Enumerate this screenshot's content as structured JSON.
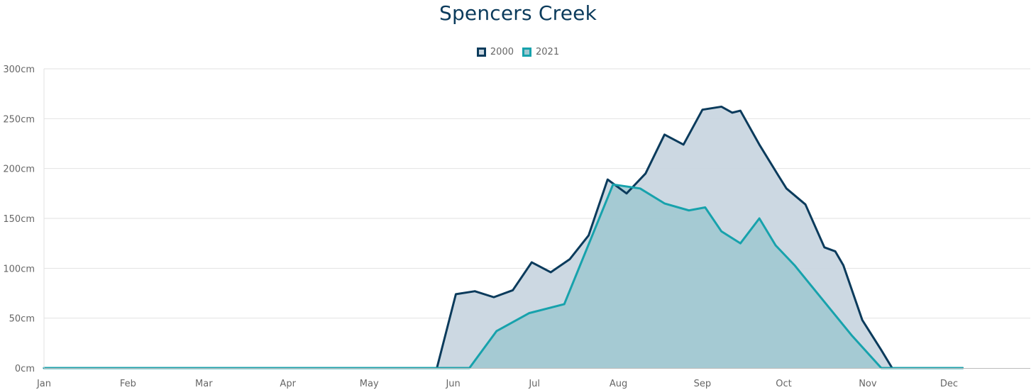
{
  "chart_data": {
    "type": "area",
    "title": "Spencers Creek",
    "xlabel": "",
    "ylabel": "",
    "ylim": [
      0,
      300
    ],
    "y_ticks": [
      0,
      50,
      100,
      150,
      200,
      250,
      300
    ],
    "y_tick_labels": [
      "0cm",
      "50cm",
      "100cm",
      "150cm",
      "200cm",
      "250cm",
      "300cm"
    ],
    "x_range_days": [
      1,
      365
    ],
    "x_ticks": [
      {
        "day": 1,
        "label": "Jan"
      },
      {
        "day": 32,
        "label": "Feb"
      },
      {
        "day": 60,
        "label": "Mar"
      },
      {
        "day": 91,
        "label": "Apr"
      },
      {
        "day": 121,
        "label": "May"
      },
      {
        "day": 152,
        "label": "Jun"
      },
      {
        "day": 182,
        "label": "Jul"
      },
      {
        "day": 213,
        "label": "Aug"
      },
      {
        "day": 244,
        "label": "Sep"
      },
      {
        "day": 274,
        "label": "Oct"
      },
      {
        "day": 305,
        "label": "Nov"
      },
      {
        "day": 335,
        "label": "Dec"
      }
    ],
    "grid": true,
    "legend_position": "top-center",
    "series": [
      {
        "name": "2000",
        "stroke": "#0b3b5c",
        "fill": "#c9d6e0",
        "points": [
          [
            1,
            0
          ],
          [
            146,
            0
          ],
          [
            153,
            74
          ],
          [
            160,
            77
          ],
          [
            167,
            71
          ],
          [
            174,
            78
          ],
          [
            181,
            106
          ],
          [
            188,
            96
          ],
          [
            195,
            109
          ],
          [
            202,
            133
          ],
          [
            209,
            189
          ],
          [
            216,
            175
          ],
          [
            223,
            195
          ],
          [
            230,
            234
          ],
          [
            237,
            224
          ],
          [
            244,
            259
          ],
          [
            251,
            262
          ],
          [
            255,
            256
          ],
          [
            258,
            258
          ],
          [
            265,
            224
          ],
          [
            272,
            193
          ],
          [
            275,
            180
          ],
          [
            282,
            164
          ],
          [
            289,
            121
          ],
          [
            293,
            117
          ],
          [
            296,
            103
          ],
          [
            303,
            48
          ],
          [
            310,
            18
          ],
          [
            314,
            0
          ],
          [
            340,
            0
          ]
        ]
      },
      {
        "name": "2021",
        "stroke": "#17a2ac",
        "fill": "#9ec8d0",
        "points": [
          [
            1,
            0
          ],
          [
            158,
            0
          ],
          [
            168,
            37
          ],
          [
            180,
            55
          ],
          [
            193,
            64
          ],
          [
            211,
            184
          ],
          [
            221,
            180
          ],
          [
            230,
            165
          ],
          [
            239,
            158
          ],
          [
            245,
            161
          ],
          [
            251,
            137
          ],
          [
            258,
            125
          ],
          [
            265,
            150
          ],
          [
            271,
            123
          ],
          [
            278,
            103
          ],
          [
            299,
            33
          ],
          [
            310,
            0
          ],
          [
            340,
            0
          ]
        ]
      }
    ]
  }
}
